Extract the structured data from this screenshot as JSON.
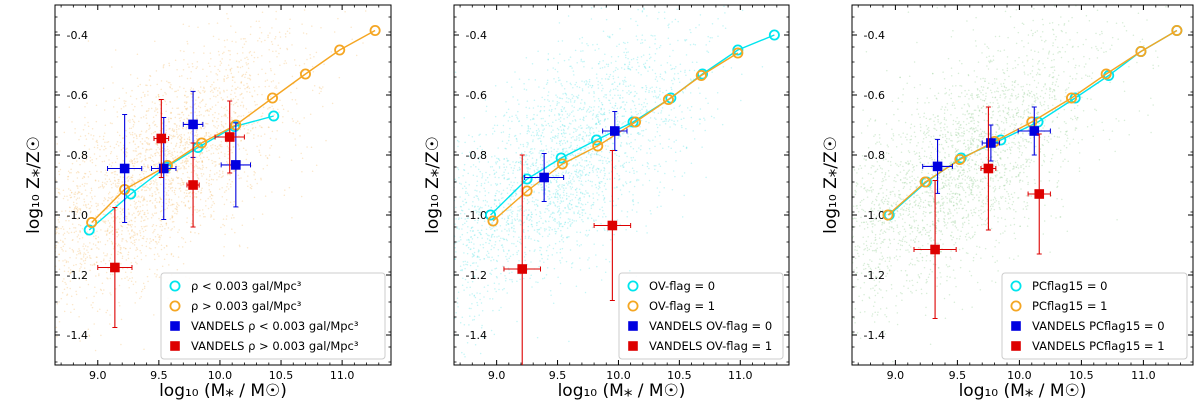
{
  "colors": {
    "cyan": "#00e5ee",
    "orange": "#f5a623",
    "blue": "#0000e0",
    "red": "#dd0000",
    "cyan_cloud": "#7fe8ec",
    "orange_cloud": "#f7c98a",
    "green_cloud": "#a8d8a8"
  },
  "chart_data": [
    {
      "type": "scatter",
      "panel": "left",
      "xlabel": "log₁₀ (M⁎ / M☉)",
      "ylabel": "log₁₀ Z⁎/Z☉",
      "xlim": [
        8.65,
        11.4
      ],
      "ylim": [
        -1.5,
        -0.3
      ],
      "xticks": [
        "9.0",
        "9.5",
        "10.0",
        "10.5",
        "11.0"
      ],
      "yticks": [
        "-0.4",
        "-0.6",
        "-0.8",
        "-1.0",
        "-1.2",
        "-1.4"
      ],
      "background_cloud": {
        "color": "orange",
        "desc": "faint point cloud"
      },
      "legend_position": "lower-right",
      "series": [
        {
          "name": "ρ < 0.003 gal/Mpc³",
          "kind": "line-open-circle",
          "color": "cyan",
          "x": [
            8.93,
            9.27,
            9.56,
            9.82,
            10.12,
            10.44
          ],
          "y": [
            -1.05,
            -0.93,
            -0.84,
            -0.775,
            -0.705,
            -0.67
          ]
        },
        {
          "name": "ρ > 0.003 gal/Mpc³",
          "kind": "line-open-circle",
          "color": "orange",
          "x": [
            8.95,
            9.22,
            9.57,
            9.85,
            10.13,
            10.43,
            10.7,
            10.98,
            11.27
          ],
          "y": [
            -1.025,
            -0.915,
            -0.835,
            -0.76,
            -0.7,
            -0.61,
            -0.53,
            -0.45,
            -0.385
          ]
        },
        {
          "name": "VANDELS ρ < 0.003 gal/Mpc³",
          "kind": "square-errorbar",
          "color": "blue",
          "x": [
            9.22,
            9.54,
            9.78,
            10.13
          ],
          "y": [
            -0.845,
            -0.845,
            -0.698,
            -0.833
          ],
          "xerr": [
            0.14,
            0.1,
            0.08,
            0.12
          ],
          "yerr": [
            0.18,
            0.17,
            0.11,
            0.14
          ]
        },
        {
          "name": "VANDELS ρ > 0.003 gal/Mpc³",
          "kind": "square-errorbar",
          "color": "red",
          "x": [
            9.14,
            9.52,
            9.78,
            10.08
          ],
          "y": [
            -1.175,
            -0.745,
            -0.9,
            -0.74
          ],
          "xerr": [
            0.14,
            0.06,
            0.05,
            0.12
          ],
          "yerr": [
            0.2,
            0.13,
            0.14,
            0.12
          ]
        }
      ]
    },
    {
      "type": "scatter",
      "panel": "middle",
      "xlabel": "log₁₀ (M⁎ / M☉)",
      "ylabel": "log₁₀ Z⁎/Z☉",
      "xlim": [
        8.65,
        11.4
      ],
      "ylim": [
        -1.5,
        -0.3
      ],
      "xticks": [
        "9.0",
        "9.5",
        "10.0",
        "10.5",
        "11.0"
      ],
      "yticks": [
        "-0.4",
        "-0.6",
        "-0.8",
        "-1.0",
        "-1.2",
        "-1.4"
      ],
      "background_cloud": {
        "color": "cyan",
        "desc": "faint point cloud"
      },
      "legend_position": "lower-right",
      "series": [
        {
          "name": "OV-flag = 0",
          "kind": "line-open-circle",
          "color": "cyan",
          "x": [
            8.95,
            9.25,
            9.53,
            9.82,
            10.12,
            10.43,
            10.69,
            10.98,
            11.28
          ],
          "y": [
            -1.0,
            -0.88,
            -0.81,
            -0.75,
            -0.69,
            -0.61,
            -0.53,
            -0.45,
            -0.4
          ]
        },
        {
          "name": "OV-flag = 1",
          "kind": "line-open-circle",
          "color": "orange",
          "x": [
            8.97,
            9.25,
            9.54,
            9.83,
            10.14,
            10.41,
            10.68,
            10.98
          ],
          "y": [
            -1.02,
            -0.92,
            -0.83,
            -0.77,
            -0.69,
            -0.615,
            -0.535,
            -0.46
          ]
        },
        {
          "name": "VANDELS OV-flag = 0",
          "kind": "square-errorbar",
          "color": "blue",
          "x": [
            9.39,
            9.97
          ],
          "y": [
            -0.875,
            -0.72
          ],
          "xerr": [
            0.16,
            0.1
          ],
          "yerr": [
            0.08,
            0.065
          ]
        },
        {
          "name": "VANDELS OV-flag = 1",
          "kind": "square-errorbar",
          "color": "red",
          "x": [
            9.21,
            9.95
          ],
          "y": [
            -1.18,
            -1.035
          ],
          "xerr": [
            0.15,
            0.15
          ],
          "yerr": [
            0.38,
            0.25
          ]
        }
      ]
    },
    {
      "type": "scatter",
      "panel": "right",
      "xlabel": "log₁₀ (M⁎ / M☉)",
      "ylabel": "log₁₀ Z⁎/Z☉",
      "xlim": [
        8.65,
        11.4
      ],
      "ylim": [
        -1.5,
        -0.3
      ],
      "xticks": [
        "9.0",
        "9.5",
        "10.0",
        "10.5",
        "11.0"
      ],
      "yticks": [
        "-0.4",
        "-0.6",
        "-0.8",
        "-1.0",
        "-1.2",
        "-1.4"
      ],
      "background_cloud": {
        "color": "green",
        "desc": "faint point cloud"
      },
      "legend_position": "lower-right",
      "series": [
        {
          "name": "PCflag15 = 0",
          "kind": "line-open-circle",
          "color": "cyan",
          "x": [
            8.95,
            9.25,
            9.53,
            9.85,
            10.15,
            10.45,
            10.72,
            10.98,
            11.27
          ],
          "y": [
            -1.0,
            -0.89,
            -0.81,
            -0.75,
            -0.69,
            -0.61,
            -0.535,
            -0.455,
            -0.385
          ]
        },
        {
          "name": "PCflag15 = 1",
          "kind": "line-open-circle",
          "color": "orange",
          "x": [
            8.94,
            9.24,
            9.52,
            9.8,
            10.1,
            10.42,
            10.7,
            10.98,
            11.27
          ],
          "y": [
            -1.0,
            -0.89,
            -0.815,
            -0.755,
            -0.69,
            -0.61,
            -0.53,
            -0.455,
            -0.385
          ]
        },
        {
          "name": "VANDELS PCflag15 = 0",
          "kind": "square-errorbar",
          "color": "blue",
          "x": [
            9.34,
            9.77,
            10.12
          ],
          "y": [
            -0.838,
            -0.76,
            -0.72
          ],
          "xerr": [
            0.12,
            0.07,
            0.13
          ],
          "yerr": [
            0.09,
            0.06,
            0.08
          ]
        },
        {
          "name": "VANDELS PCflag15 = 1",
          "kind": "square-errorbar",
          "color": "red",
          "x": [
            9.32,
            9.75,
            10.16
          ],
          "y": [
            -1.115,
            -0.845,
            -0.93
          ],
          "xerr": [
            0.17,
            0.06,
            0.09
          ],
          "yerr": [
            0.23,
            0.205,
            0.2
          ]
        }
      ]
    }
  ]
}
